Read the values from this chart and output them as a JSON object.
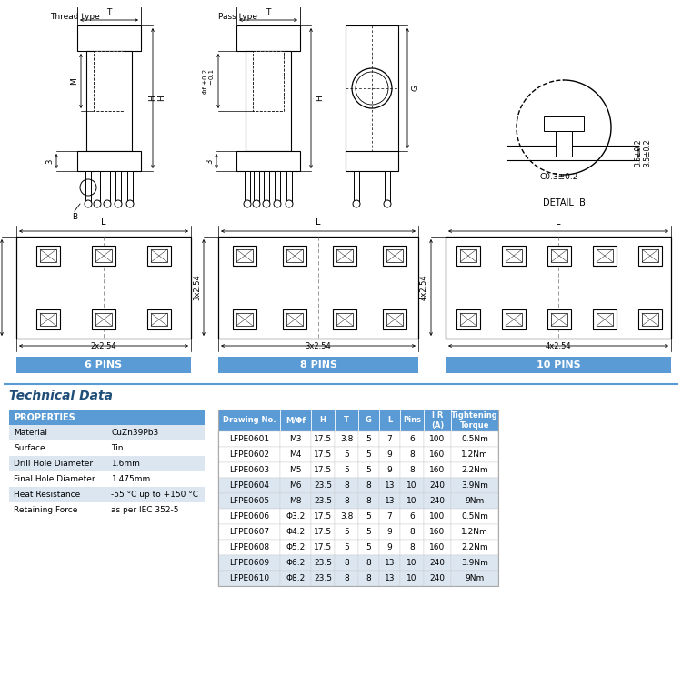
{
  "bg_color": "#ffffff",
  "header_blue": "#5b9bd5",
  "row_alt": "#dce6f1",
  "row_white": "#ffffff",
  "tech_title_color": "#1f4e79",
  "props_header": "PROPERTIES",
  "properties": [
    [
      "Material",
      "CuZn39Pb3"
    ],
    [
      "Surface",
      "Tin"
    ],
    [
      "Drill Hole Diameter",
      "1.6mm"
    ],
    [
      "Final Hole Diameter",
      "1.475mm"
    ],
    [
      "Heat Resistance",
      "-55 °C up to +150 °C"
    ],
    [
      "Retaining Force",
      "as per IEC 352-5"
    ]
  ],
  "table_headers": [
    "Drawing No.",
    "M/Φf",
    "H",
    "T",
    "G",
    "L",
    "Pins",
    "I R\n(A)",
    "Tightening\nTorque"
  ],
  "table_col_widths": [
    68,
    34,
    26,
    26,
    23,
    23,
    26,
    30,
    52
  ],
  "table_data": [
    [
      "LFPE0601",
      "M3",
      "17.5",
      "3.8",
      "5",
      "7",
      "6",
      "100",
      "0.5Nm"
    ],
    [
      "LFPE0602",
      "M4",
      "17.5",
      "5",
      "5",
      "9",
      "8",
      "160",
      "1.2Nm"
    ],
    [
      "LFPE0603",
      "M5",
      "17.5",
      "5",
      "5",
      "9",
      "8",
      "160",
      "2.2Nm"
    ],
    [
      "LFPE0604",
      "M6",
      "23.5",
      "8",
      "8",
      "13",
      "10",
      "240",
      "3.9Nm"
    ],
    [
      "LFPE0605",
      "M8",
      "23.5",
      "8",
      "8",
      "13",
      "10",
      "240",
      "9Nm"
    ],
    [
      "LFPE0606",
      "Φ3.2",
      "17.5",
      "3.8",
      "5",
      "7",
      "6",
      "100",
      "0.5Nm"
    ],
    [
      "LFPE0607",
      "Φ4.2",
      "17.5",
      "5",
      "5",
      "9",
      "8",
      "160",
      "1.2Nm"
    ],
    [
      "LFPE0608",
      "Φ5.2",
      "17.5",
      "5",
      "5",
      "9",
      "8",
      "160",
      "2.2Nm"
    ],
    [
      "LFPE0609",
      "Φ6.2",
      "23.5",
      "8",
      "8",
      "13",
      "10",
      "240",
      "3.9Nm"
    ],
    [
      "LFPE0610",
      "Φ8.2",
      "23.5",
      "8",
      "8",
      "13",
      "10",
      "240",
      "9Nm"
    ]
  ]
}
